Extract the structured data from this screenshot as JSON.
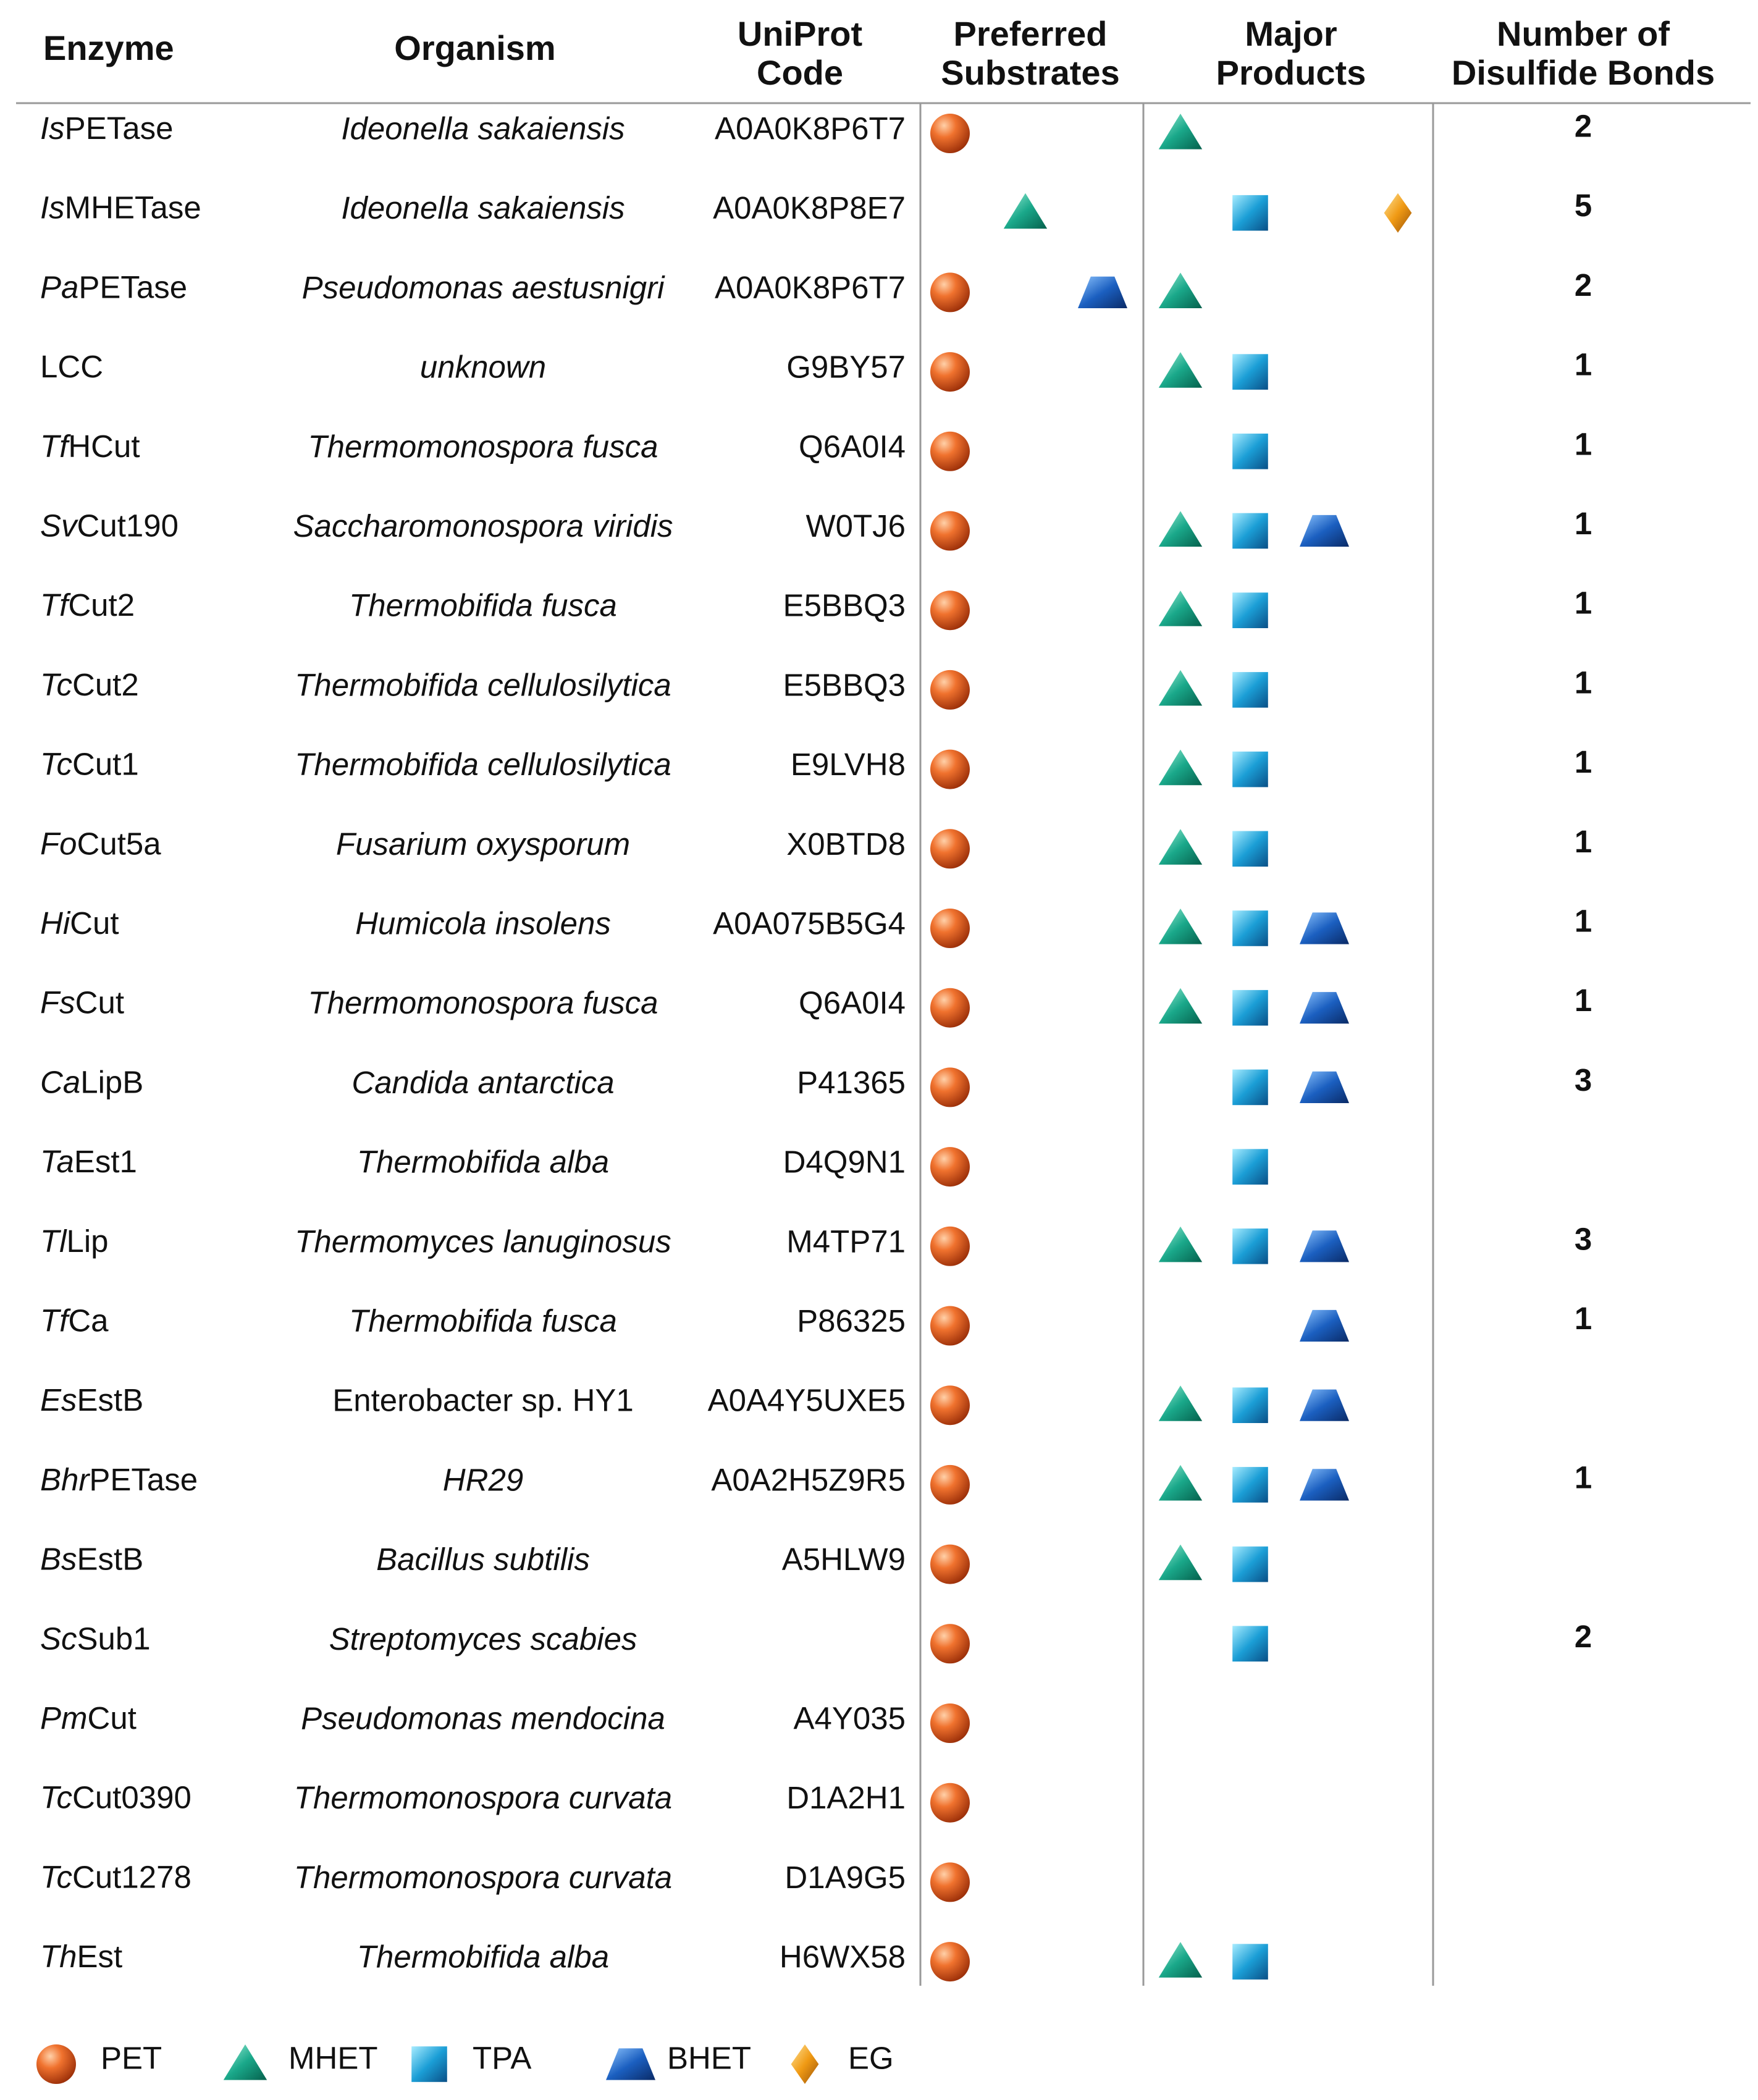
{
  "table": {
    "header": [
      [
        "Enzyme"
      ],
      [
        "Organism"
      ],
      [
        "UniProt",
        "Code"
      ],
      [
        "Preferred",
        "Substrates"
      ],
      [
        "Major",
        "Products"
      ],
      [
        "Number of",
        "Disulfide Bonds"
      ]
    ],
    "rows": [
      {
        "prefix": "Is",
        "name": "PETase",
        "organism": "Ideonella sakaiensis",
        "uniprot": "A0A0K8P6T7",
        "substrates": [
          "PET"
        ],
        "products": [
          "MHET"
        ],
        "disulfide_bonds": 2
      },
      {
        "prefix": "Is",
        "name": "MHETase",
        "organism": "Ideonella sakaiensis",
        "uniprot": "A0A0K8P8E7",
        "substrates": [
          "MHET"
        ],
        "products": [
          "TPA",
          "EG"
        ],
        "disulfide_bonds": 5
      },
      {
        "prefix": "Pa",
        "name": "PETase",
        "organism": "Pseudomonas aestusnigri",
        "uniprot": "A0A0K8P6T7",
        "substrates": [
          "PET",
          "BHET"
        ],
        "products": [
          "MHET"
        ],
        "disulfide_bonds": 2
      },
      {
        "prefix": null,
        "name": "LCC",
        "organism": "unknown",
        "uniprot": "G9BY57",
        "substrates": [
          "PET"
        ],
        "products": [
          "MHET",
          "TPA"
        ],
        "disulfide_bonds": 1
      },
      {
        "prefix": "Tf",
        "name": "HCut",
        "organism": "Thermomonospora fusca",
        "uniprot": "Q6A0I4",
        "substrates": [
          "PET"
        ],
        "products": [
          "TPA"
        ],
        "disulfide_bonds": 1
      },
      {
        "prefix": "Sv",
        "name": "Cut190",
        "organism": "Saccharomonospora viridis",
        "uniprot": "W0TJ6",
        "substrates": [
          "PET"
        ],
        "products": [
          "MHET",
          "TPA",
          "BHET"
        ],
        "disulfide_bonds": 1
      },
      {
        "prefix": "Tf",
        "name": "Cut2",
        "organism": "Thermobifida fusca",
        "uniprot": "E5BBQ3",
        "substrates": [
          "PET"
        ],
        "products": [
          "MHET",
          "TPA"
        ],
        "disulfide_bonds": 1
      },
      {
        "prefix": "Tc",
        "name": "Cut2",
        "organism": "Thermobifida cellulosilytica",
        "uniprot": "E5BBQ3",
        "substrates": [
          "PET"
        ],
        "products": [
          "MHET",
          "TPA"
        ],
        "disulfide_bonds": 1
      },
      {
        "prefix": "Tc",
        "name": "Cut1",
        "organism": "Thermobifida cellulosilytica",
        "uniprot": "E9LVH8",
        "substrates": [
          "PET"
        ],
        "products": [
          "MHET",
          "TPA"
        ],
        "disulfide_bonds": 1
      },
      {
        "prefix": "Fo",
        "name": "Cut5a",
        "organism": "Fusarium oxysporum",
        "uniprot": "X0BTD8",
        "substrates": [
          "PET"
        ],
        "products": [
          "MHET",
          "TPA"
        ],
        "disulfide_bonds": 1
      },
      {
        "prefix": "Hi",
        "name": "Cut",
        "organism": "Humicola insolens",
        "uniprot": "A0A075B5G4",
        "substrates": [
          "PET"
        ],
        "products": [
          "MHET",
          "TPA",
          "BHET"
        ],
        "disulfide_bonds": 1
      },
      {
        "prefix": "Fs",
        "name": "Cut",
        "organism": "Thermomonospora fusca",
        "uniprot": "Q6A0I4",
        "substrates": [
          "PET"
        ],
        "products": [
          "MHET",
          "TPA",
          "BHET"
        ],
        "disulfide_bonds": 1
      },
      {
        "prefix": "Ca",
        "name": "LipB",
        "organism": "Candida antarctica",
        "uniprot": "P41365",
        "substrates": [
          "PET"
        ],
        "products": [
          "TPA",
          "BHET"
        ],
        "disulfide_bonds": 3
      },
      {
        "prefix": "Ta",
        "name": "Est1",
        "organism": "Thermobifida alba",
        "uniprot": "D4Q9N1",
        "substrates": [
          "PET"
        ],
        "products": [
          "TPA"
        ],
        "disulfide_bonds": null
      },
      {
        "prefix": "Tl",
        "name": "Lip",
        "organism": "Thermomyces lanuginosus",
        "uniprot": "M4TP71",
        "substrates": [
          "PET"
        ],
        "products": [
          "MHET",
          "TPA",
          "BHET"
        ],
        "disulfide_bonds": 3
      },
      {
        "prefix": "Tf",
        "name": "Ca",
        "organism": "Thermobifida fusca",
        "uniprot": "P86325",
        "substrates": [
          "PET"
        ],
        "products": [
          "BHET"
        ],
        "disulfide_bonds": 1
      },
      {
        "prefix": "Es",
        "name": "EstB",
        "organism": "Enterobacter sp. HY1",
        "organism_italic": false,
        "uniprot": "A0A4Y5UXE5",
        "substrates": [
          "PET"
        ],
        "products": [
          "MHET",
          "TPA",
          "BHET"
        ],
        "disulfide_bonds": null
      },
      {
        "prefix": "Bhr",
        "name": "PETase",
        "organism": "HR29",
        "uniprot": "A0A2H5Z9R5",
        "substrates": [
          "PET"
        ],
        "products": [
          "MHET",
          "TPA",
          "BHET"
        ],
        "disulfide_bonds": 1
      },
      {
        "prefix": "Bs",
        "name": "EstB",
        "organism": "Bacillus subtilis",
        "uniprot": "A5HLW9",
        "substrates": [
          "PET"
        ],
        "products": [
          "MHET",
          "TPA"
        ],
        "disulfide_bonds": null
      },
      {
        "prefix": "Sc",
        "name": "Sub1",
        "organism": "Streptomyces scabies",
        "uniprot": null,
        "substrates": [
          "PET"
        ],
        "products": [
          "TPA"
        ],
        "disulfide_bonds": 2
      },
      {
        "prefix": "Pm",
        "name": "Cut",
        "organism": "Pseudomonas mendocina",
        "uniprot": "A4Y035",
        "substrates": [
          "PET"
        ],
        "products": [],
        "disulfide_bonds": null
      },
      {
        "prefix": "Tc",
        "name": "Cut0390",
        "organism": "Thermomonospora curvata",
        "uniprot": "D1A2H1",
        "substrates": [
          "PET"
        ],
        "products": [],
        "disulfide_bonds": null
      },
      {
        "prefix": "Tc",
        "name": "Cut1278",
        "organism": "Thermomonospora curvata",
        "uniprot": "D1A9G5",
        "substrates": [
          "PET"
        ],
        "products": [],
        "disulfide_bonds": null
      },
      {
        "prefix": "Th",
        "name": "Est",
        "organism": "Thermobifida alba",
        "uniprot": "H6WX58",
        "substrates": [
          "PET"
        ],
        "products": [
          "MHET",
          "TPA"
        ],
        "disulfide_bonds": null
      }
    ]
  },
  "legend": [
    "PET",
    "MHET",
    "TPA",
    "BHET",
    "EG"
  ]
}
